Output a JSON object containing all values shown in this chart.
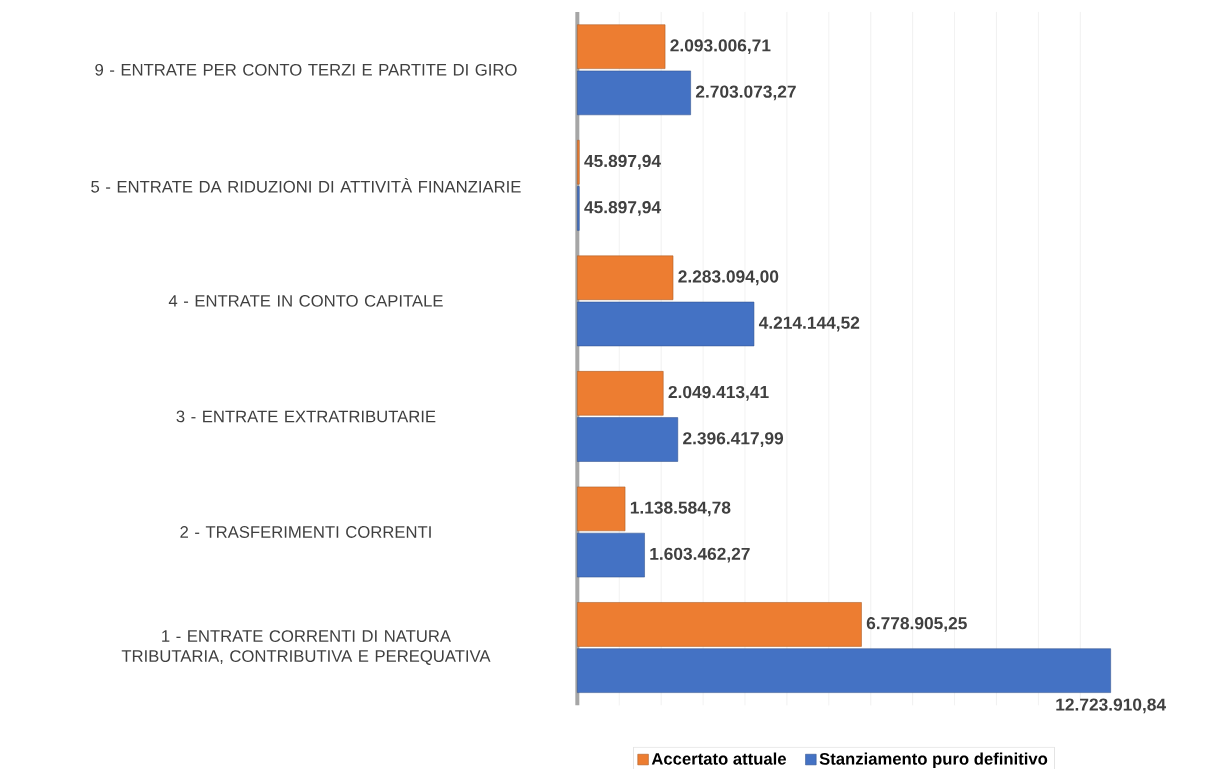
{
  "chart_data": {
    "type": "bar",
    "orientation": "horizontal",
    "categories": [
      "9 - ENTRATE PER CONTO TERZI E PARTITE DI GIRO",
      "5 - ENTRATE DA RIDUZIONI DI ATTIVITÀ FINANZIARIE",
      "4 - ENTRATE IN CONTO CAPITALE",
      "3 - ENTRATE EXTRATRIBUTARIE",
      "2 - TRASFERIMENTI CORRENTI",
      "1 - ENTRATE CORRENTI DI NATURA TRIBUTARIA, CONTRIBUTIVA E PEREQUATIVA"
    ],
    "series": [
      {
        "name": "Accertato attuale",
        "color": "#ed7d31",
        "values": [
          2093006.71,
          45897.94,
          2283094.0,
          2049413.41,
          1138584.78,
          6778905.25
        ],
        "value_labels": [
          "2.093.006,71",
          "45.897,94",
          "2.283.094,00",
          "2.049.413,41",
          "1.138.584,78",
          "6.778.905,25"
        ]
      },
      {
        "name": "Stanziamento puro definitivo",
        "color": "#4472c4",
        "values": [
          2703073.27,
          45897.94,
          4214144.52,
          2396417.99,
          1603462.27,
          12723910.84
        ],
        "value_labels": [
          "2.703.073,27",
          "45.897,94",
          "4.214.144,52",
          "2.396.417,99",
          "1.603.462,27",
          "12.723.910,84"
        ]
      }
    ],
    "grid": "x",
    "legend": "bottom"
  }
}
